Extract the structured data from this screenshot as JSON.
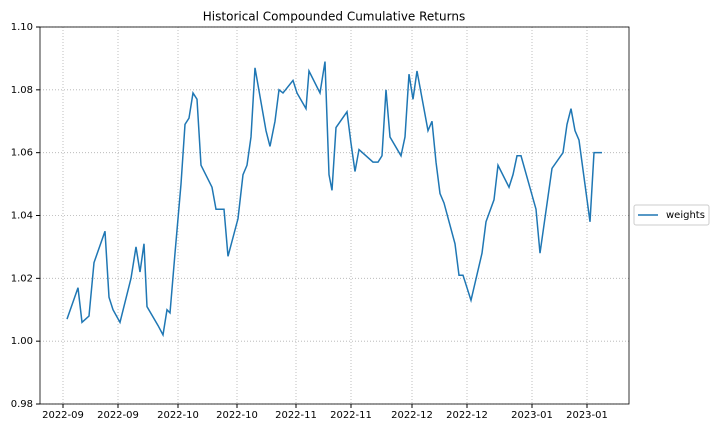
{
  "chart_data": {
    "type": "line",
    "title": "Historical Compounded Cumulative Returns",
    "x": [
      27,
      38,
      42,
      49,
      54,
      65,
      69,
      73,
      80,
      91,
      96,
      100,
      104,
      107,
      118,
      123,
      127,
      130,
      135,
      141,
      145,
      149,
      153,
      157,
      161,
      172,
      176,
      184,
      188,
      198,
      203,
      207,
      211,
      215,
      226,
      230,
      235,
      239,
      243,
      253,
      257,
      266,
      269,
      280,
      285,
      289,
      292,
      296,
      307,
      311,
      315,
      319,
      333,
      338,
      342,
      346,
      350,
      361,
      365,
      369,
      373,
      377,
      388,
      392,
      396,
      400,
      404,
      415,
      419,
      423,
      431,
      442,
      446,
      454,
      458,
      469,
      473,
      477,
      481,
      496,
      500,
      512,
      523,
      527,
      531,
      535,
      539,
      550,
      554,
      558,
      562
    ],
    "series": [
      {
        "name": "weights",
        "color": "#1f77b4",
        "values": [
          1.007,
          1.017,
          1.006,
          1.008,
          1.025,
          1.035,
          1.014,
          1.01,
          1.006,
          1.02,
          1.03,
          1.022,
          1.031,
          1.011,
          1.005,
          1.002,
          1.01,
          1.009,
          1.028,
          1.05,
          1.069,
          1.071,
          1.079,
          1.077,
          1.056,
          1.049,
          1.042,
          1.042,
          1.027,
          1.039,
          1.053,
          1.056,
          1.065,
          1.087,
          1.067,
          1.062,
          1.07,
          1.08,
          1.079,
          1.083,
          1.079,
          1.074,
          1.086,
          1.079,
          1.089,
          1.053,
          1.048,
          1.068,
          1.073,
          1.063,
          1.054,
          1.061,
          1.057,
          1.057,
          1.059,
          1.08,
          1.065,
          1.059,
          1.065,
          1.085,
          1.077,
          1.086,
          1.067,
          1.07,
          1.057,
          1.047,
          1.044,
          1.031,
          1.021,
          1.021,
          1.013,
          1.028,
          1.038,
          1.045,
          1.056,
          1.049,
          1.053,
          1.059,
          1.059,
          1.042,
          1.028,
          1.055,
          1.06,
          1.069,
          1.074,
          1.067,
          1.064,
          1.038,
          1.06,
          1.06,
          1.06
        ]
      }
    ],
    "xlim": [
      0,
      589
    ],
    "xticks": [
      {
        "value": 23,
        "label": "2022-09"
      },
      {
        "value": 78,
        "label": "2022-09"
      },
      {
        "value": 138,
        "label": "2022-10"
      },
      {
        "value": 197,
        "label": "2022-10"
      },
      {
        "value": 256,
        "label": "2022-11"
      },
      {
        "value": 311,
        "label": "2022-11"
      },
      {
        "value": 372,
        "label": "2022-12"
      },
      {
        "value": 427,
        "label": "2022-12"
      },
      {
        "value": 492,
        "label": "2023-01"
      },
      {
        "value": 547,
        "label": "2023-01"
      }
    ],
    "ylim": [
      0.98,
      1.1
    ],
    "yticks": [
      0.98,
      {
        "value": 1.0,
        "label": "1.00"
      },
      1.02,
      1.04,
      1.06,
      1.08,
      {
        "value": 1.1,
        "label": "1.10"
      }
    ],
    "grid": true
  }
}
